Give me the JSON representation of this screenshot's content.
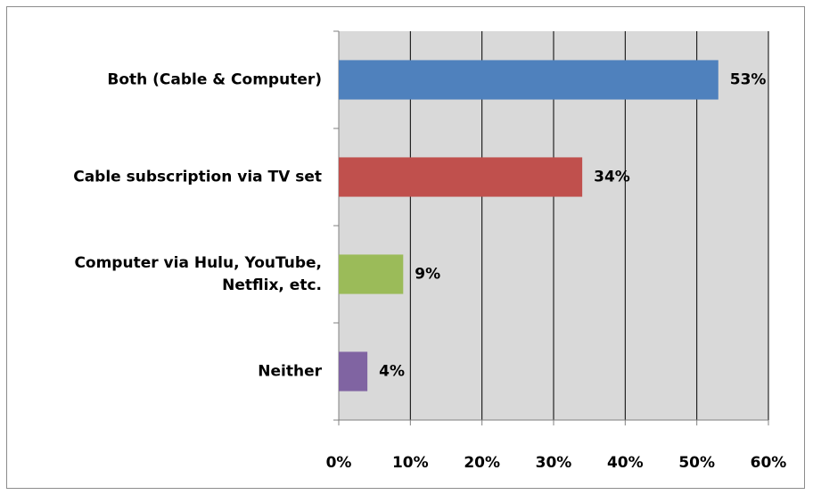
{
  "chart_data": {
    "type": "bar",
    "orientation": "horizontal",
    "categories": [
      [
        "Both (Cable & Computer)"
      ],
      [
        "Cable subscription via TV set"
      ],
      [
        "Computer via Hulu, YouTube,",
        "Netflix, etc."
      ],
      [
        "Neither"
      ]
    ],
    "values": [
      53,
      34,
      9,
      4
    ],
    "data_labels": [
      "53%",
      "34%",
      "9%",
      "4%"
    ],
    "colors": [
      "#4f81bd",
      "#c0504d",
      "#9bbb59",
      "#8064a2"
    ],
    "xlim": [
      0,
      60
    ],
    "x_ticks": [
      0,
      10,
      20,
      30,
      40,
      50,
      60
    ],
    "x_tick_labels": [
      "0%",
      "10%",
      "20%",
      "30%",
      "40%",
      "50%",
      "60%"
    ],
    "plot_background": "#d9d9d9",
    "grid": true,
    "legend": "none"
  }
}
